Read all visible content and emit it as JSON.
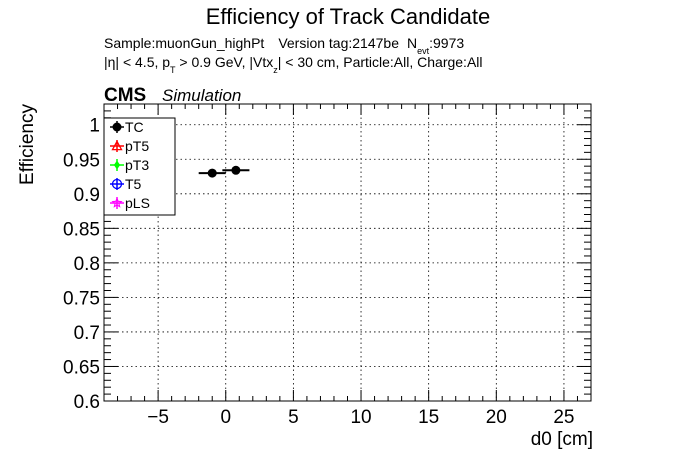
{
  "chart_data": {
    "type": "scatter",
    "title": "Efficiency of Track Candidate",
    "subtitle": {
      "line1": {
        "sample": "Sample:muonGun_highPt",
        "version": "Version tag:2147be",
        "n_label": "N",
        "n_sub": "evt",
        "n_value": ":9973"
      },
      "line2": {
        "p1": "|η| < 4.5, p",
        "sub1": "T",
        "p2": " > 0.9 GeV, |Vtx",
        "sub2": "z",
        "p3": "| < 30 cm, Particle:All, Charge:All"
      }
    },
    "cms_label": "CMS",
    "simulation_label": "Simulation",
    "xlabel": "d0 [cm]",
    "ylabel": "Efficiency",
    "xlim": [
      -9,
      27
    ],
    "ylim": [
      0.6,
      1.03
    ],
    "x_ticks": [
      -5,
      0,
      5,
      10,
      15,
      20,
      25
    ],
    "x_tick_labels": [
      "−5",
      "0",
      "5",
      "10",
      "15",
      "20",
      "25"
    ],
    "y_ticks": [
      0.6,
      0.65,
      0.7,
      0.75,
      0.8,
      0.85,
      0.9,
      0.95,
      1.0
    ],
    "y_tick_labels": [
      "0.6",
      "0.65",
      "0.7",
      "0.75",
      "0.8",
      "0.85",
      "0.9",
      "0.95",
      "1"
    ],
    "grid": true,
    "legend_position": "top-left",
    "series": [
      {
        "name": "TC",
        "color": "#000000",
        "marker": "filled-circle",
        "points": [
          {
            "x": -1.0,
            "xerr": 1.0,
            "y": 0.93,
            "yerr": 0.004
          },
          {
            "x": 0.75,
            "xerr": 1.0,
            "y": 0.934,
            "yerr": 0.004
          }
        ]
      },
      {
        "name": "pT5",
        "color": "#ff0000",
        "marker": "open-triangle",
        "points": []
      },
      {
        "name": "pT3",
        "color": "#00ff00",
        "marker": "filled-diamond",
        "points": []
      },
      {
        "name": "T5",
        "color": "#0000ff",
        "marker": "open-circle",
        "points": []
      },
      {
        "name": "pLS",
        "color": "#ff00ff",
        "marker": "open-star",
        "points": []
      }
    ]
  }
}
